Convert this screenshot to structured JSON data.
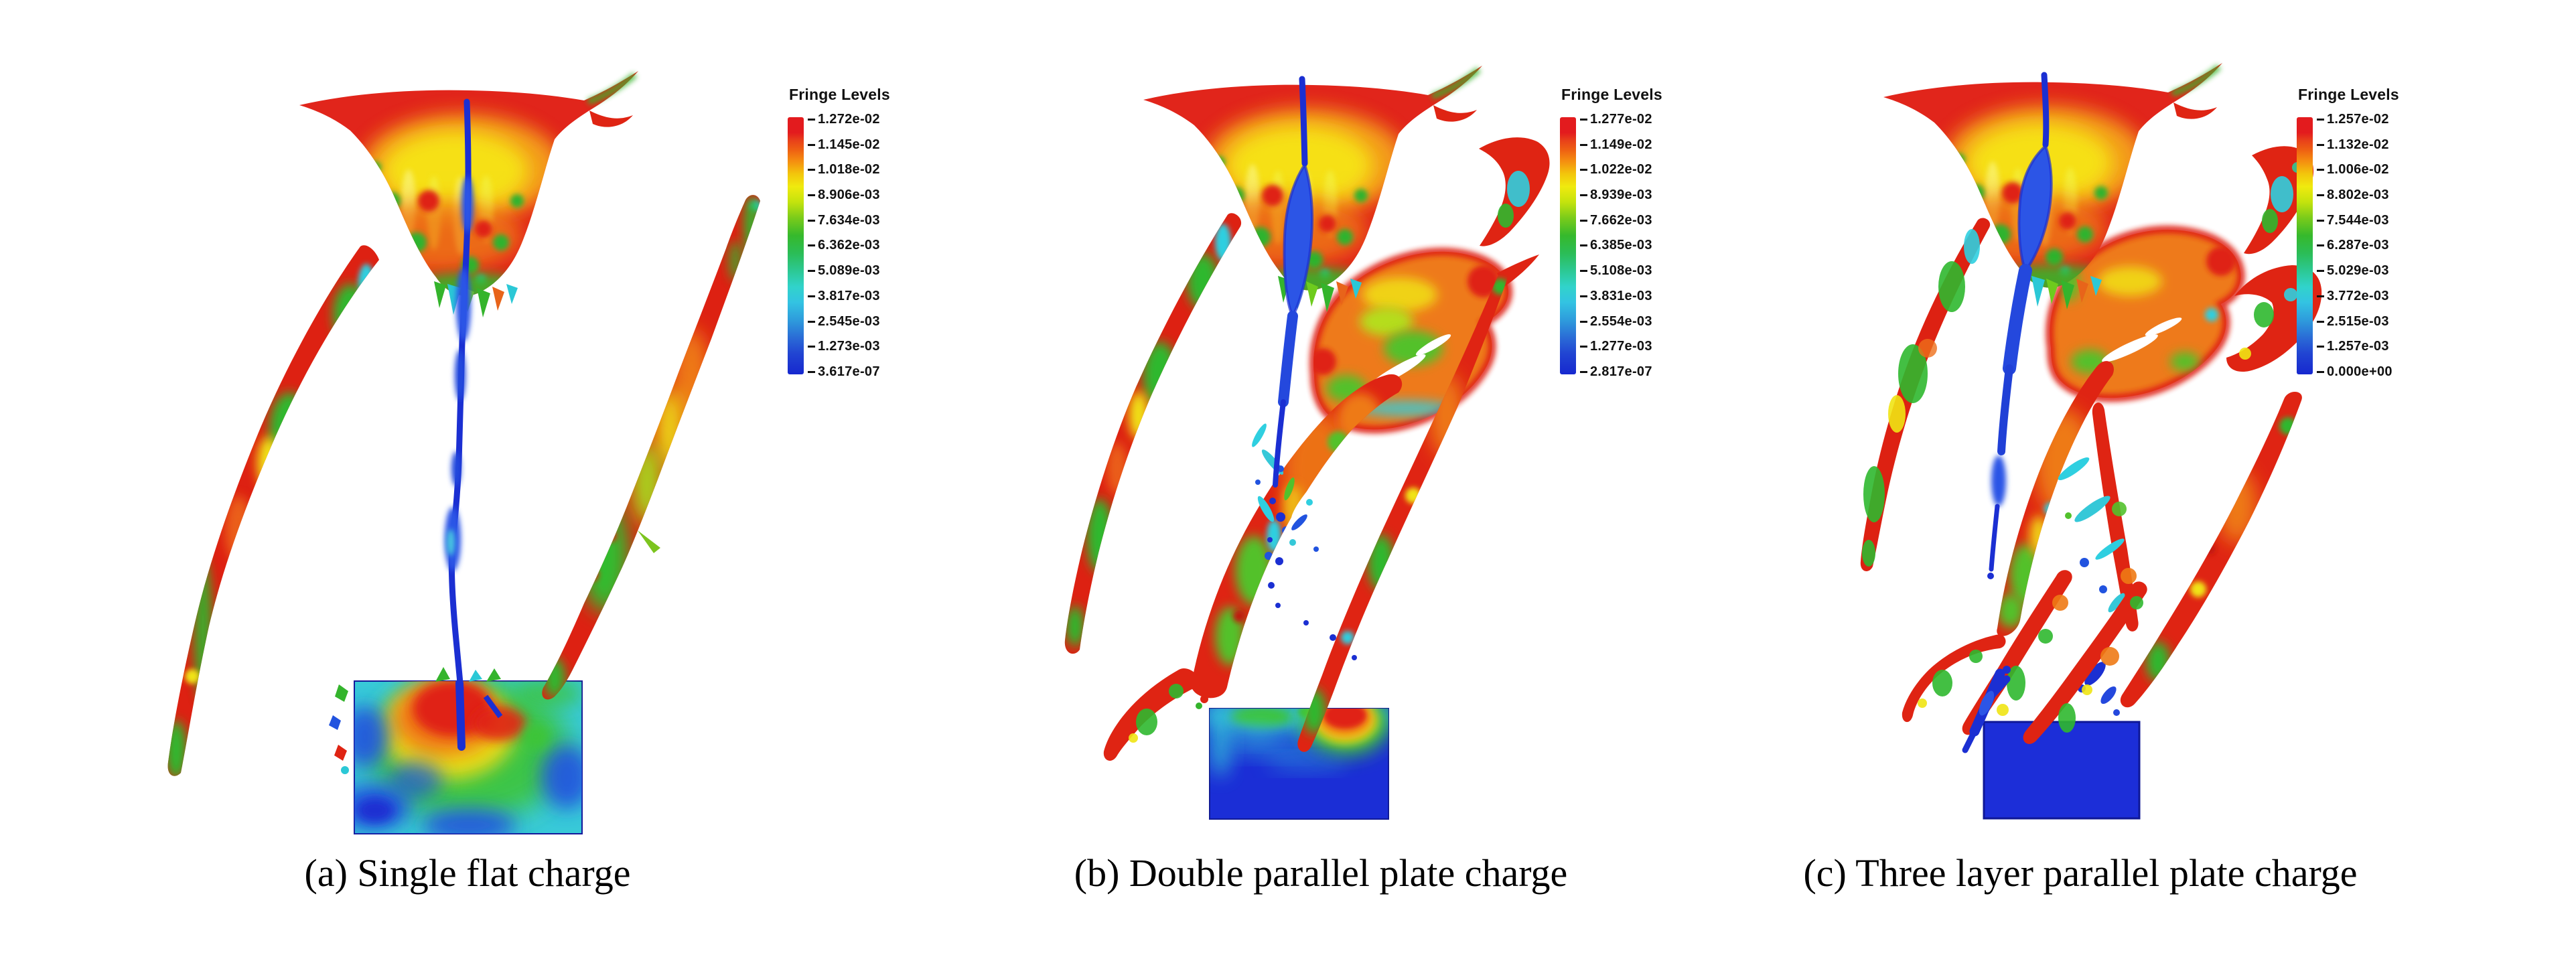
{
  "figure": {
    "background_color": "#ffffff",
    "caption_color": "#000000",
    "legend_text_color": "#111111"
  },
  "fringe_palette": [
    "#e31b1e",
    "#ef6312",
    "#f0ea0e",
    "#7ccc1a",
    "#36b92c",
    "#2cc996",
    "#31d3cb",
    "#33c3e2",
    "#2e9bdc",
    "#2a6ad6",
    "#1628cf"
  ],
  "panels": [
    {
      "id": "a",
      "caption": "(a) Single flat charge",
      "legend": {
        "title": "Fringe Levels",
        "values": [
          "1.272e-02",
          "1.145e-02",
          "1.018e-02",
          "8.906e-03",
          "7.634e-03",
          "6.362e-03",
          "5.089e-03",
          "3.817e-03",
          "2.545e-03",
          "1.273e-03",
          "3.617e-07"
        ]
      }
    },
    {
      "id": "b",
      "caption": "(b) Double parallel plate charge",
      "legend": {
        "title": "Fringe Levels",
        "values": [
          "1.277e-02",
          "1.149e-02",
          "1.022e-02",
          "8.939e-03",
          "7.662e-03",
          "6.385e-03",
          "5.108e-03",
          "3.831e-03",
          "2.554e-03",
          "1.277e-03",
          "2.817e-07"
        ]
      }
    },
    {
      "id": "c",
      "caption": "(c) Three layer parallel plate charge",
      "legend": {
        "title": "Fringe Levels",
        "values": [
          "1.257e-02",
          "1.132e-02",
          "1.006e-02",
          "8.802e-03",
          "7.544e-03",
          "6.287e-03",
          "5.029e-03",
          "3.772e-03",
          "2.515e-03",
          "1.257e-03",
          "0.000e+00"
        ]
      }
    }
  ]
}
